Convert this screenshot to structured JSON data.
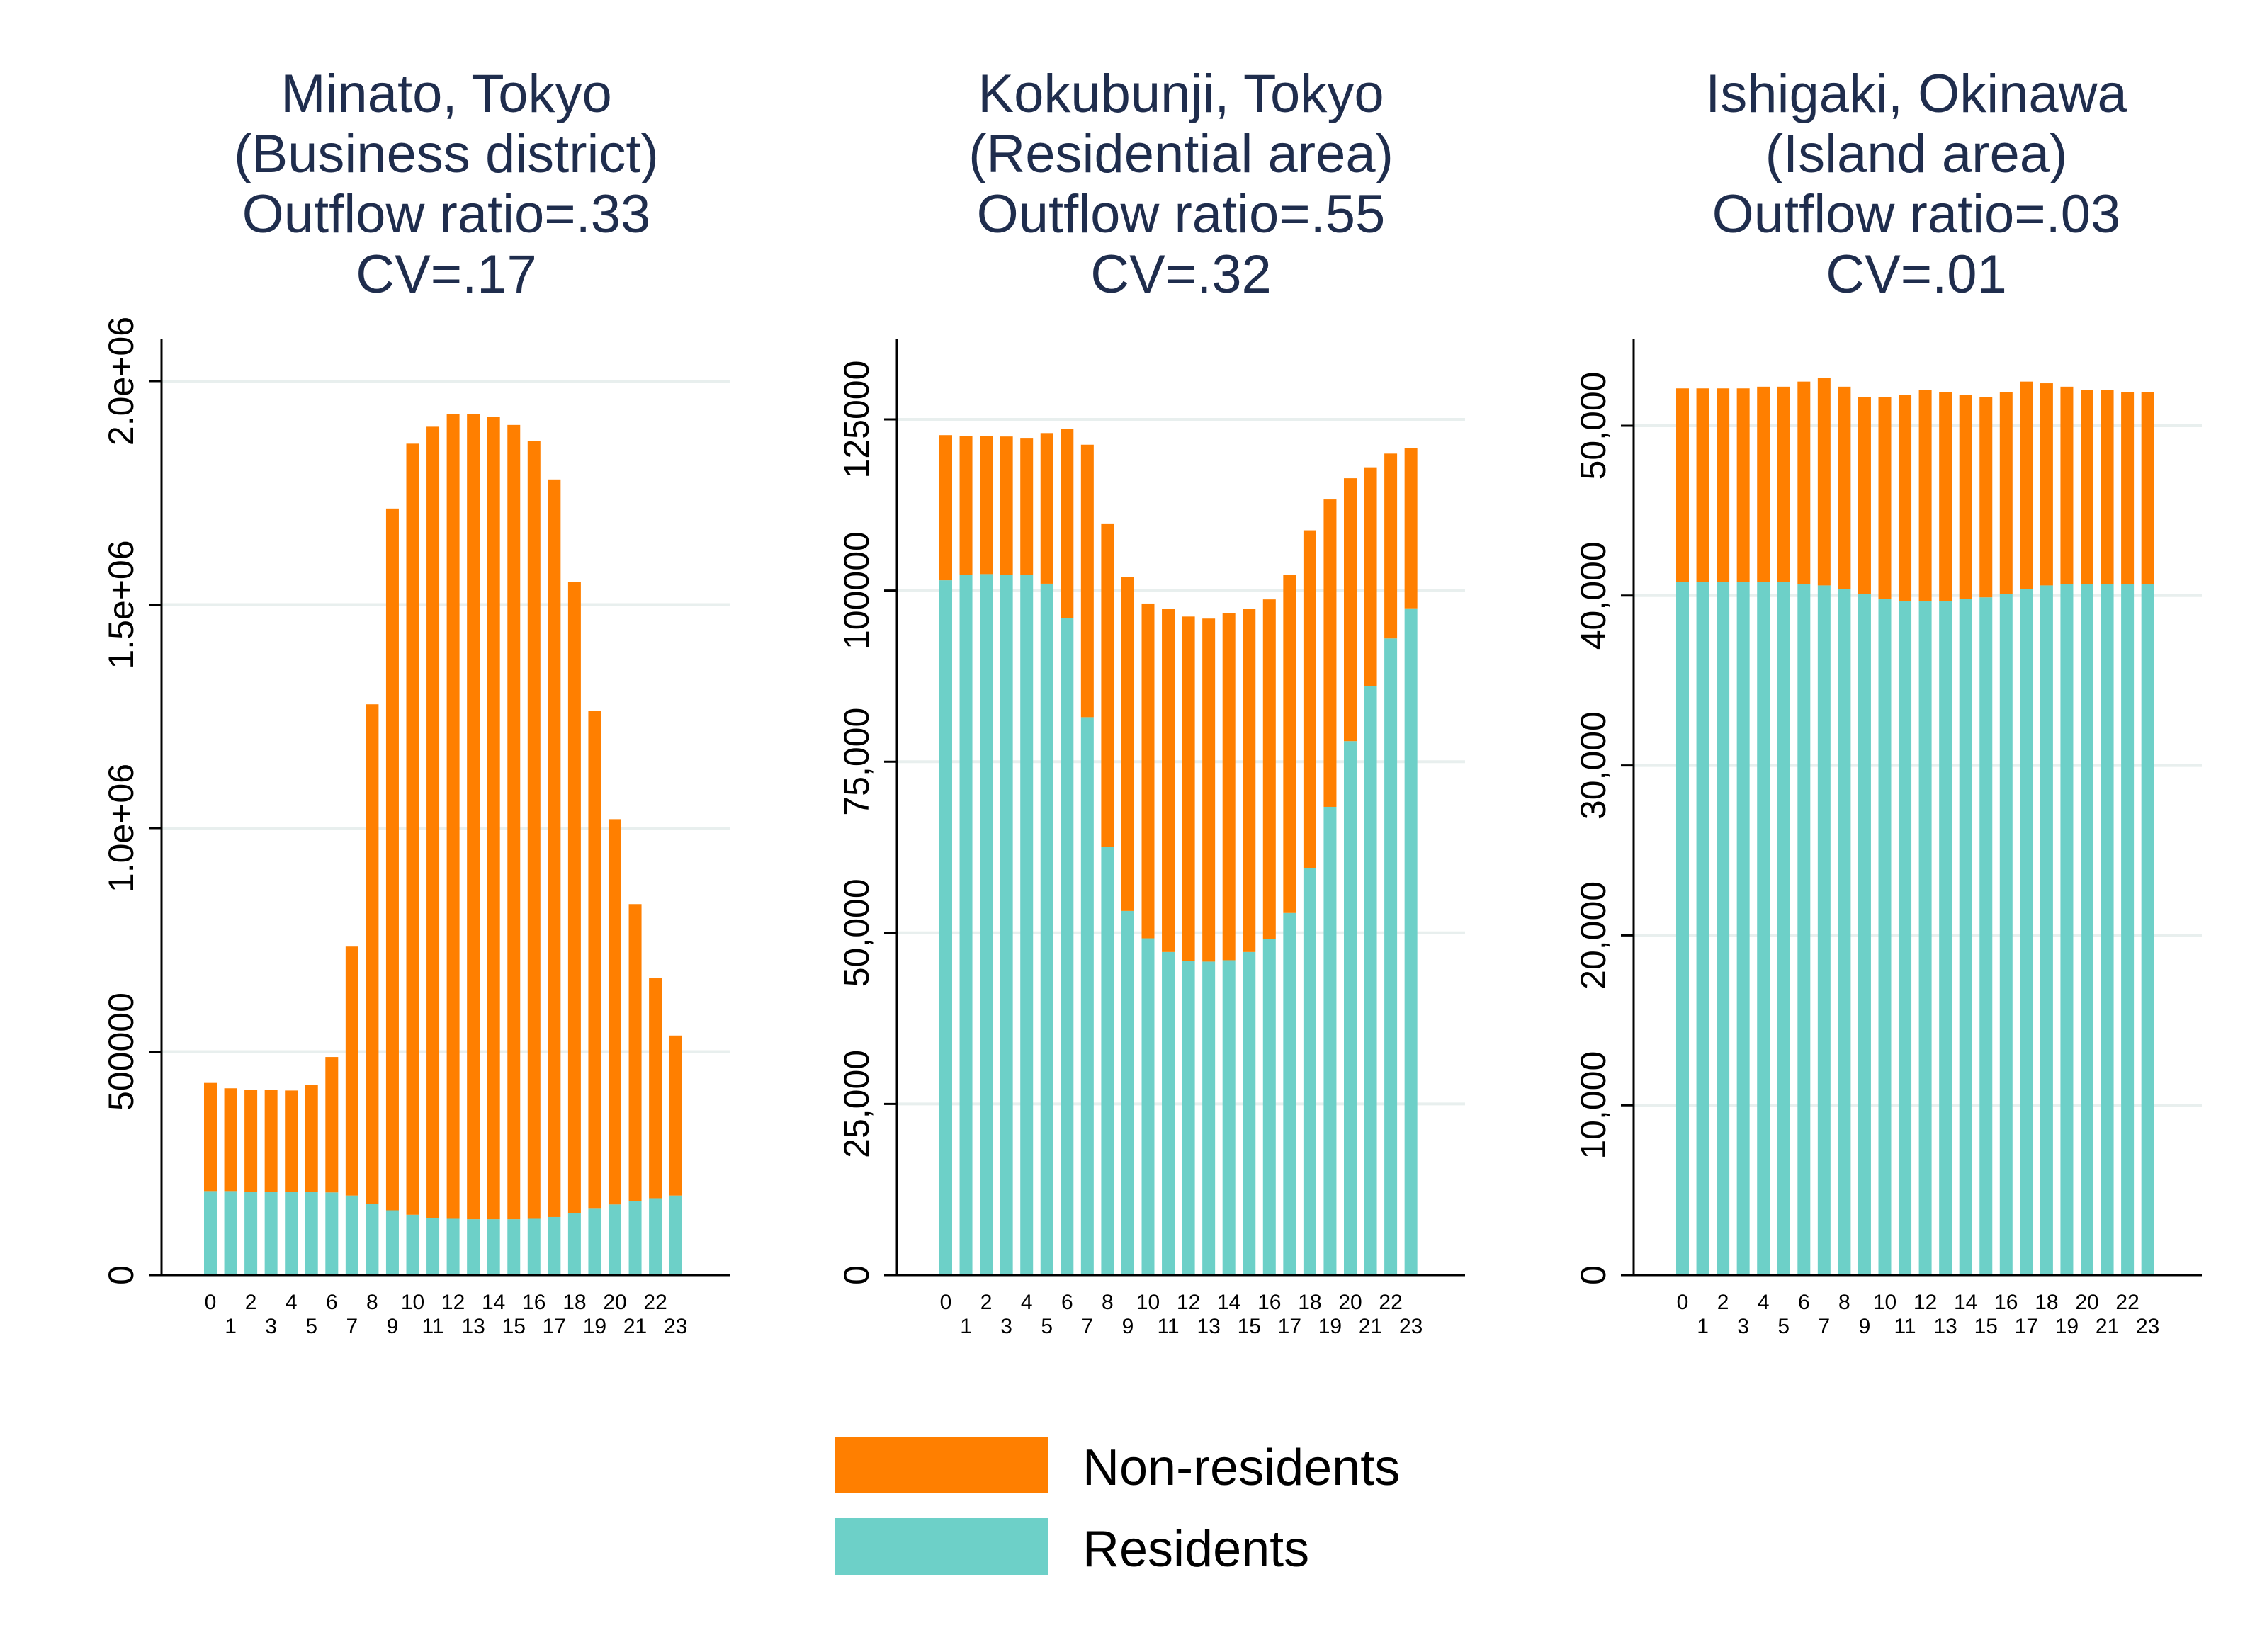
{
  "chart_data": [
    {
      "type": "bar",
      "stacked": true,
      "title": [
        "Minato, Tokyo",
        "(Business district)",
        "Outflow ratio=.33",
        "CV=.17"
      ],
      "categories": [
        "0",
        "1",
        "2",
        "3",
        "4",
        "5",
        "6",
        "7",
        "8",
        "9",
        "10",
        "11",
        "12",
        "13",
        "14",
        "15",
        "16",
        "17",
        "18",
        "19",
        "20",
        "21",
        "22",
        "23"
      ],
      "series": [
        {
          "name": "Residents",
          "color": "#6dd0c8",
          "values": [
            188000,
            188000,
            187000,
            187000,
            186000,
            186000,
            185000,
            178000,
            160000,
            145000,
            135000,
            128000,
            126000,
            125000,
            125000,
            125000,
            126000,
            130000,
            138000,
            150000,
            158000,
            165000,
            172000,
            178000
          ]
        },
        {
          "name": "Non-residents",
          "color": "#ff7f00",
          "values": [
            242000,
            230000,
            228000,
            227000,
            227000,
            240000,
            303000,
            557000,
            1117000,
            1570000,
            1725000,
            1770000,
            1800000,
            1802000,
            1795000,
            1777000,
            1740000,
            1650000,
            1412000,
            1112000,
            862000,
            665000,
            492000,
            358000
          ]
        }
      ],
      "ylim": [
        0,
        2000000
      ],
      "yticks": [
        0,
        500000,
        1000000,
        1500000,
        2000000
      ],
      "ytick_labels": [
        "0",
        "500000",
        "1.0e+06",
        "1.5e+06",
        "2.0e+06"
      ]
    },
    {
      "type": "bar",
      "stacked": true,
      "title": [
        "Kokubunji, Tokyo",
        "(Residential area)",
        "Outflow ratio=.55",
        "CV=.32"
      ],
      "categories": [
        "0",
        "1",
        "2",
        "3",
        "4",
        "5",
        "6",
        "7",
        "8",
        "9",
        "10",
        "11",
        "12",
        "13",
        "14",
        "15",
        "16",
        "17",
        "18",
        "19",
        "20",
        "21",
        "22",
        "23"
      ],
      "series": [
        {
          "name": "Residents",
          "color": "#6dd0c8",
          "values": [
            101500,
            102300,
            102400,
            102300,
            102300,
            101000,
            96000,
            81500,
            62500,
            53200,
            49200,
            47200,
            45900,
            45800,
            46000,
            47200,
            49100,
            52900,
            59500,
            68400,
            78000,
            86000,
            93000,
            97400
          ]
        },
        {
          "name": "Non-residents",
          "color": "#ff7f00",
          "values": [
            21200,
            20300,
            20200,
            20200,
            20000,
            22000,
            27600,
            39800,
            47300,
            48800,
            48900,
            50100,
            50300,
            50100,
            50700,
            50100,
            49600,
            49400,
            49300,
            44900,
            38400,
            32000,
            27000,
            23400
          ]
        }
      ],
      "ylim": [
        0,
        125000
      ],
      "yticks": [
        0,
        25000,
        50000,
        75000,
        100000,
        125000
      ],
      "ytick_labels": [
        "0",
        "25,000",
        "50,000",
        "75,000",
        "100000",
        "125000"
      ]
    },
    {
      "type": "bar",
      "stacked": true,
      "title": [
        "Ishigaki, Okinawa",
        "(Island area)",
        "Outflow ratio=.03",
        "CV=.01"
      ],
      "categories": [
        "0",
        "1",
        "2",
        "3",
        "4",
        "5",
        "6",
        "7",
        "8",
        "9",
        "10",
        "11",
        "12",
        "13",
        "14",
        "15",
        "16",
        "17",
        "18",
        "19",
        "20",
        "21",
        "22",
        "23"
      ],
      "series": [
        {
          "name": "Residents",
          "color": "#6dd0c8",
          "values": [
            40800,
            40800,
            40800,
            40800,
            40800,
            40800,
            40700,
            40600,
            40400,
            40100,
            39800,
            39700,
            39700,
            39700,
            39800,
            39900,
            40100,
            40400,
            40600,
            40700,
            40700,
            40700,
            40700,
            40700
          ]
        },
        {
          "name": "Non-residents",
          "color": "#ff7f00",
          "values": [
            11400,
            11400,
            11400,
            11400,
            11500,
            11500,
            11900,
            12200,
            11900,
            11600,
            11900,
            12100,
            12400,
            12300,
            12000,
            11800,
            11900,
            12200,
            11900,
            11600,
            11400,
            11400,
            11300,
            11300
          ]
        }
      ],
      "ylim": [
        0,
        50000
      ],
      "yticks": [
        0,
        10000,
        20000,
        30000,
        40000,
        50000
      ],
      "ytick_labels": [
        "0",
        "10,000",
        "20,000",
        "30,000",
        "40,000",
        "50,000"
      ]
    }
  ],
  "legend": {
    "placement": "bottom-center",
    "items": [
      {
        "label": "Non-residents",
        "color": "#ff7f00"
      },
      {
        "label": "Residents",
        "color": "#6dd0c8"
      }
    ]
  },
  "colors": {
    "title": "#1f2d4d",
    "axis": "#000000",
    "grid": "#e8efee"
  }
}
